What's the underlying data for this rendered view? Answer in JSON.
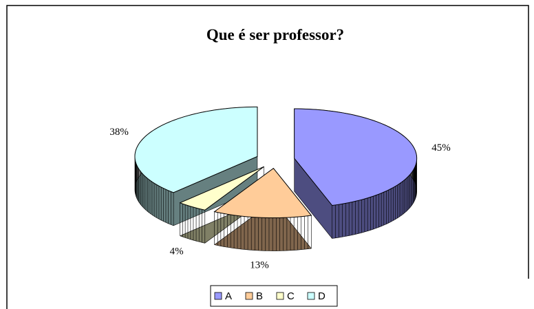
{
  "chart_data": {
    "type": "pie3d",
    "title": "Que é ser professor?",
    "categories": [
      "A",
      "B",
      "C",
      "D"
    ],
    "values": [
      45,
      13,
      4,
      38
    ],
    "value_labels": [
      "45%",
      "13%",
      "4%",
      "38%"
    ],
    "colors": [
      "#9999ff",
      "#ffcc99",
      "#ffffcc",
      "#ccffff"
    ],
    "legend": "bottom"
  }
}
